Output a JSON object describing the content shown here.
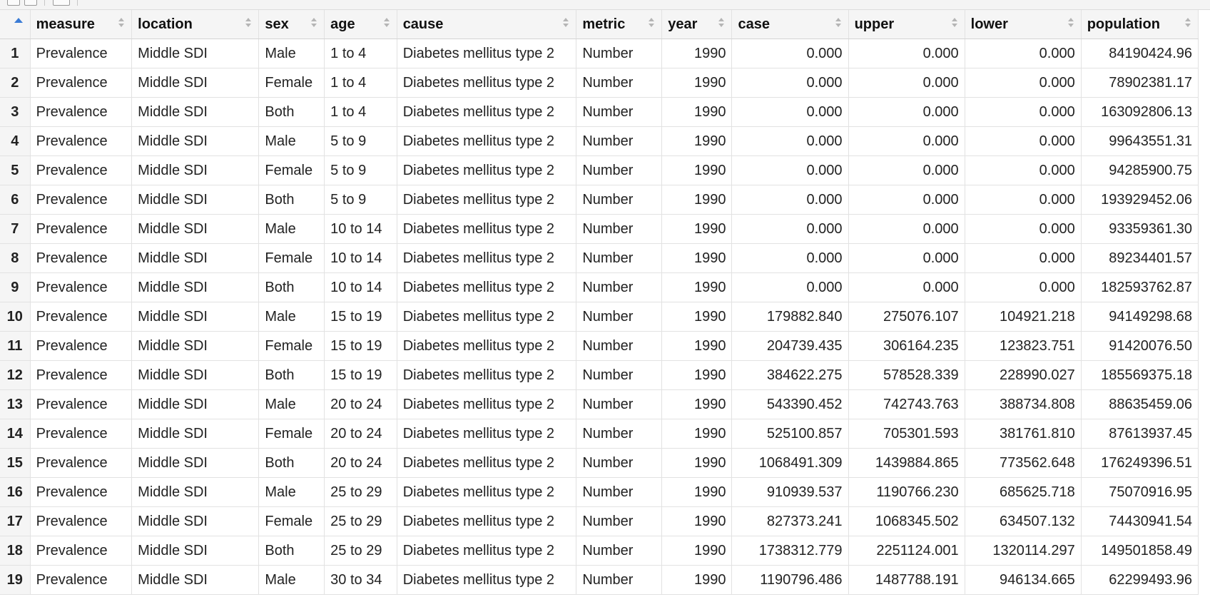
{
  "columns": [
    "measure",
    "location",
    "sex",
    "age",
    "cause",
    "metric",
    "year",
    "case",
    "upper",
    "lower",
    "population"
  ],
  "rows": [
    [
      "1",
      "Prevalence",
      "Middle SDI",
      "Male",
      "1 to 4",
      "Diabetes mellitus type 2",
      "Number",
      "1990",
      "0.000",
      "0.000",
      "0.000",
      "84190424.96"
    ],
    [
      "2",
      "Prevalence",
      "Middle SDI",
      "Female",
      "1 to 4",
      "Diabetes mellitus type 2",
      "Number",
      "1990",
      "0.000",
      "0.000",
      "0.000",
      "78902381.17"
    ],
    [
      "3",
      "Prevalence",
      "Middle SDI",
      "Both",
      "1 to 4",
      "Diabetes mellitus type 2",
      "Number",
      "1990",
      "0.000",
      "0.000",
      "0.000",
      "163092806.13"
    ],
    [
      "4",
      "Prevalence",
      "Middle SDI",
      "Male",
      "5 to 9",
      "Diabetes mellitus type 2",
      "Number",
      "1990",
      "0.000",
      "0.000",
      "0.000",
      "99643551.31"
    ],
    [
      "5",
      "Prevalence",
      "Middle SDI",
      "Female",
      "5 to 9",
      "Diabetes mellitus type 2",
      "Number",
      "1990",
      "0.000",
      "0.000",
      "0.000",
      "94285900.75"
    ],
    [
      "6",
      "Prevalence",
      "Middle SDI",
      "Both",
      "5 to 9",
      "Diabetes mellitus type 2",
      "Number",
      "1990",
      "0.000",
      "0.000",
      "0.000",
      "193929452.06"
    ],
    [
      "7",
      "Prevalence",
      "Middle SDI",
      "Male",
      "10 to 14",
      "Diabetes mellitus type 2",
      "Number",
      "1990",
      "0.000",
      "0.000",
      "0.000",
      "93359361.30"
    ],
    [
      "8",
      "Prevalence",
      "Middle SDI",
      "Female",
      "10 to 14",
      "Diabetes mellitus type 2",
      "Number",
      "1990",
      "0.000",
      "0.000",
      "0.000",
      "89234401.57"
    ],
    [
      "9",
      "Prevalence",
      "Middle SDI",
      "Both",
      "10 to 14",
      "Diabetes mellitus type 2",
      "Number",
      "1990",
      "0.000",
      "0.000",
      "0.000",
      "182593762.87"
    ],
    [
      "10",
      "Prevalence",
      "Middle SDI",
      "Male",
      "15 to 19",
      "Diabetes mellitus type 2",
      "Number",
      "1990",
      "179882.840",
      "275076.107",
      "104921.218",
      "94149298.68"
    ],
    [
      "11",
      "Prevalence",
      "Middle SDI",
      "Female",
      "15 to 19",
      "Diabetes mellitus type 2",
      "Number",
      "1990",
      "204739.435",
      "306164.235",
      "123823.751",
      "91420076.50"
    ],
    [
      "12",
      "Prevalence",
      "Middle SDI",
      "Both",
      "15 to 19",
      "Diabetes mellitus type 2",
      "Number",
      "1990",
      "384622.275",
      "578528.339",
      "228990.027",
      "185569375.18"
    ],
    [
      "13",
      "Prevalence",
      "Middle SDI",
      "Male",
      "20 to 24",
      "Diabetes mellitus type 2",
      "Number",
      "1990",
      "543390.452",
      "742743.763",
      "388734.808",
      "88635459.06"
    ],
    [
      "14",
      "Prevalence",
      "Middle SDI",
      "Female",
      "20 to 24",
      "Diabetes mellitus type 2",
      "Number",
      "1990",
      "525100.857",
      "705301.593",
      "381761.810",
      "87613937.45"
    ],
    [
      "15",
      "Prevalence",
      "Middle SDI",
      "Both",
      "20 to 24",
      "Diabetes mellitus type 2",
      "Number",
      "1990",
      "1068491.309",
      "1439884.865",
      "773562.648",
      "176249396.51"
    ],
    [
      "16",
      "Prevalence",
      "Middle SDI",
      "Male",
      "25 to 29",
      "Diabetes mellitus type 2",
      "Number",
      "1990",
      "910939.537",
      "1190766.230",
      "685625.718",
      "75070916.95"
    ],
    [
      "17",
      "Prevalence",
      "Middle SDI",
      "Female",
      "25 to 29",
      "Diabetes mellitus type 2",
      "Number",
      "1990",
      "827373.241",
      "1068345.502",
      "634507.132",
      "74430941.54"
    ],
    [
      "18",
      "Prevalence",
      "Middle SDI",
      "Both",
      "25 to 29",
      "Diabetes mellitus type 2",
      "Number",
      "1990",
      "1738312.779",
      "2251124.001",
      "1320114.297",
      "149501858.49"
    ],
    [
      "19",
      "Prevalence",
      "Middle SDI",
      "Male",
      "30 to 34",
      "Diabetes mellitus type 2",
      "Number",
      "1990",
      "1190796.486",
      "1487788.191",
      "946134.665",
      "62299493.96"
    ]
  ],
  "sort_indicator_color": "#3a7bd5"
}
